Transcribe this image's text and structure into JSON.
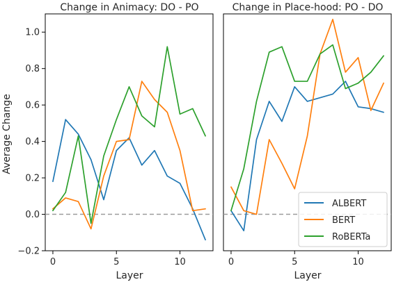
{
  "chart_data": [
    {
      "type": "line",
      "title": "Change in Animacy: DO - PO",
      "xlabel": "Layer",
      "ylabel": "Average Change",
      "xlim": [
        -0.6,
        12.6
      ],
      "ylim": [
        -0.2,
        1.1
      ],
      "xticks": [
        0,
        5,
        10
      ],
      "yticks": [
        -0.2,
        0.0,
        0.2,
        0.4,
        0.6,
        0.8,
        1.0
      ],
      "ytick_labels": [
        "−0.2",
        "0.0",
        "0.2",
        "0.4",
        "0.6",
        "0.8",
        "1.0"
      ],
      "baseline": 0,
      "x": [
        0,
        1,
        2,
        3,
        4,
        5,
        6,
        7,
        8,
        9,
        10,
        11,
        12
      ],
      "series": [
        {
          "name": "ALBERT",
          "color": "#1f77b4",
          "values": [
            0.18,
            0.52,
            0.44,
            0.3,
            0.08,
            0.35,
            0.42,
            0.27,
            0.35,
            0.21,
            0.17,
            0.03,
            -0.14
          ]
        },
        {
          "name": "BERT",
          "color": "#ff7f0e",
          "values": [
            0.03,
            0.09,
            0.07,
            -0.08,
            0.21,
            0.4,
            0.41,
            0.73,
            0.63,
            0.56,
            0.35,
            0.02,
            0.03
          ]
        },
        {
          "name": "RoBERTa",
          "color": "#2ca02c",
          "values": [
            0.02,
            0.12,
            0.43,
            -0.05,
            0.32,
            0.52,
            0.7,
            0.54,
            0.48,
            0.92,
            0.55,
            0.58,
            0.43
          ]
        }
      ]
    },
    {
      "type": "line",
      "title": "Change in Place-hood: PO - DO",
      "xlabel": "Layer",
      "ylabel": "",
      "xlim": [
        -0.6,
        12.6
      ],
      "ylim": [
        -0.2,
        1.1
      ],
      "xticks": [
        0,
        5,
        10
      ],
      "baseline": 0,
      "legend": "lower-right",
      "x": [
        0,
        1,
        2,
        3,
        4,
        5,
        6,
        7,
        8,
        9,
        10,
        11,
        12
      ],
      "series": [
        {
          "name": "ALBERT",
          "color": "#1f77b4",
          "values": [
            0.02,
            -0.09,
            0.41,
            0.62,
            0.51,
            0.7,
            0.62,
            0.64,
            0.66,
            0.73,
            0.59,
            0.58,
            0.56
          ]
        },
        {
          "name": "BERT",
          "color": "#ff7f0e",
          "values": [
            0.15,
            0.02,
            0.0,
            0.41,
            0.28,
            0.14,
            0.43,
            0.88,
            1.07,
            0.78,
            0.86,
            0.57,
            0.72
          ]
        },
        {
          "name": "RoBERTa",
          "color": "#2ca02c",
          "values": [
            0.02,
            0.25,
            0.62,
            0.89,
            0.92,
            0.73,
            0.73,
            0.88,
            0.93,
            0.69,
            0.72,
            0.78,
            0.87
          ]
        }
      ]
    }
  ]
}
